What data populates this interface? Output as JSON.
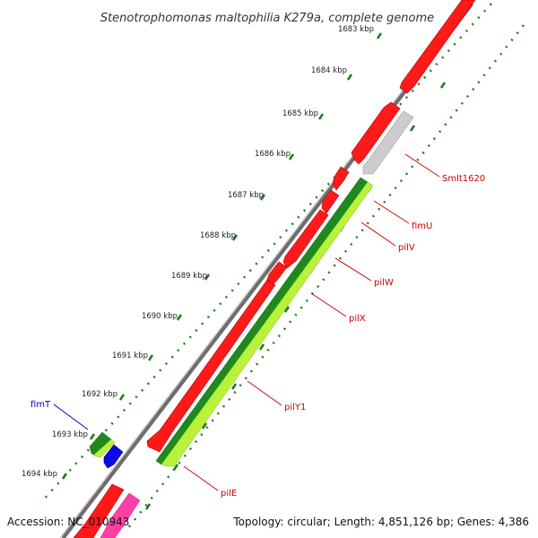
{
  "title": "Stenotrophomonas maltophilia K279a, complete genome",
  "footer": {
    "accession": "Accession: NC_010943",
    "summary": "Topology: circular; Length: 4,851,126 bp; Genes: 4,386"
  },
  "ticks": [
    "1683 kbp",
    "1684 kbp",
    "1685 kbp",
    "1686 kbp",
    "1687 kbp",
    "1688 kbp",
    "1689 kbp",
    "1690 kbp",
    "1691 kbp",
    "1692 kbp",
    "1693 kbp",
    "1694 kbp"
  ],
  "gene_labels": {
    "smlt1620": "Smlt1620",
    "fimU": "fimU",
    "pilV": "pilV",
    "pilW": "pilW",
    "pilX": "pilX",
    "pilY1": "pilY1",
    "pilE": "pilE",
    "fimT": "fimT"
  },
  "colors": {
    "cds_forward": "#ff0000",
    "cds_unnamed": "#c8c8c8",
    "feature_dark_green": "#228b22",
    "feature_light_green": "#ccff33",
    "feature_blue": "#0000ee",
    "feature_magenta": "#ff2d9a",
    "gene_label_red": "#cc0000",
    "gene_label_blue": "#0000cc",
    "tick_green": "#1f7a1f",
    "backbone": "#888888"
  }
}
